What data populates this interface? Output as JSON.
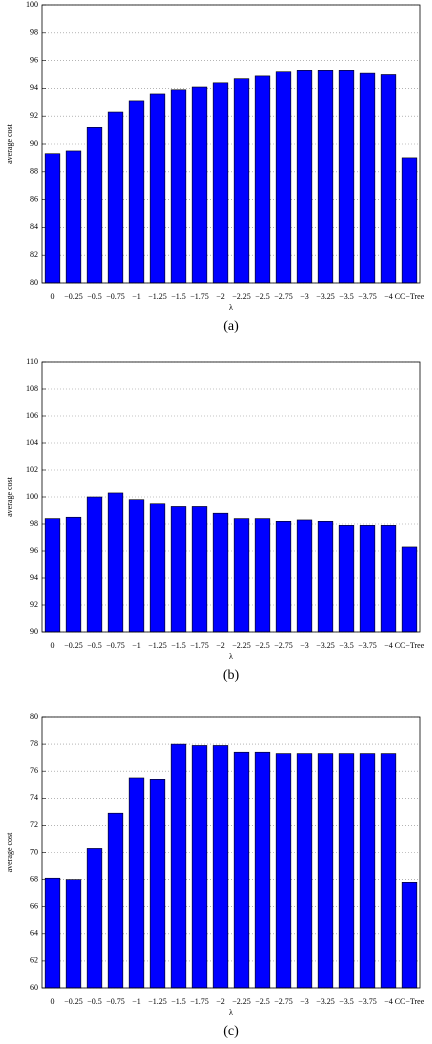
{
  "chart_data": [
    {
      "type": "bar",
      "xlabel": "λ",
      "ylabel": "average cost",
      "caption": "(a)",
      "color": "#0000ff",
      "grid": true,
      "categories": [
        "0",
        "−0.25",
        "−0.5",
        "−0.75",
        "−1",
        "−1.25",
        "−1.5",
        "−1.75",
        "−2",
        "−2.25",
        "−2.5",
        "−2.75",
        "−3",
        "−3.25",
        "−3.5",
        "−3.75",
        "−4",
        "CC−Tree"
      ],
      "values": [
        89.3,
        89.5,
        91.2,
        92.3,
        93.1,
        93.6,
        93.9,
        94.1,
        94.4,
        94.7,
        94.9,
        95.2,
        95.3,
        95.3,
        95.3,
        95.1,
        95.0,
        89.0
      ],
      "ylim": [
        80,
        100
      ],
      "yticks": [
        80,
        82,
        84,
        86,
        88,
        90,
        92,
        94,
        96,
        98,
        100
      ]
    },
    {
      "type": "bar",
      "xlabel": "λ",
      "ylabel": "average cost",
      "caption": "(b)",
      "color": "#0000ff",
      "grid": true,
      "categories": [
        "0",
        "−0.25",
        "−0.5",
        "−0.75",
        "−1",
        "−1.25",
        "−1.5",
        "−1.75",
        "−2",
        "−2.25",
        "−2.5",
        "−2.75",
        "−3",
        "−3.25",
        "−3.5",
        "−3.75",
        "−4",
        "CC−Tree"
      ],
      "values": [
        98.4,
        98.5,
        100.0,
        100.3,
        99.8,
        99.5,
        99.3,
        99.3,
        98.8,
        98.4,
        98.4,
        98.2,
        98.3,
        98.2,
        97.9,
        97.9,
        97.9,
        96.3
      ],
      "ylim": [
        90,
        110
      ],
      "yticks": [
        90,
        92,
        94,
        96,
        98,
        100,
        102,
        104,
        106,
        108,
        110
      ]
    },
    {
      "type": "bar",
      "xlabel": "λ",
      "ylabel": "average cost",
      "caption": "(c)",
      "color": "#0000ff",
      "grid": true,
      "categories": [
        "0",
        "−0.25",
        "−0.5",
        "−0.75",
        "−1",
        "−1.25",
        "−1.5",
        "−1.75",
        "−2",
        "−2.25",
        "−2.5",
        "−2.75",
        "−3",
        "−3.25",
        "−3.5",
        "−3.75",
        "−4",
        "CC−Tree"
      ],
      "values": [
        68.1,
        68.0,
        70.3,
        72.9,
        75.5,
        75.4,
        78.0,
        77.9,
        77.9,
        77.4,
        77.4,
        77.3,
        77.3,
        77.3,
        77.3,
        77.3,
        77.3,
        67.8
      ],
      "ylim": [
        60,
        80
      ],
      "yticks": [
        60,
        62,
        64,
        66,
        68,
        70,
        72,
        74,
        76,
        78,
        80
      ]
    }
  ]
}
